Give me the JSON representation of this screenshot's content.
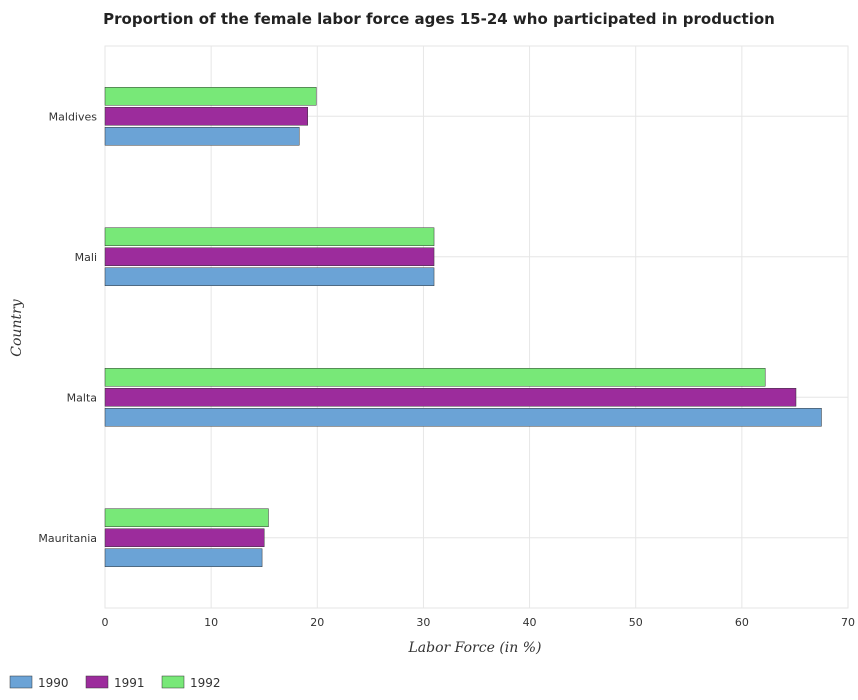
{
  "chart_data": {
    "type": "bar",
    "orientation": "horizontal",
    "title": "Proportion of the female labor force ages 15-24 who participated in production",
    "xlabel": "Labor Force (in %)",
    "ylabel": "Country",
    "xlim": [
      0,
      70
    ],
    "xticks": [
      "0",
      "10",
      "20",
      "30",
      "40",
      "50",
      "60",
      "70"
    ],
    "grid": true,
    "legend_position": "bottom-left",
    "categories": [
      "Maldives",
      "Mali",
      "Malta",
      "Mauritania"
    ],
    "series": [
      {
        "name": "1990",
        "color": "#6ba3d6",
        "values": [
          18.3,
          31.0,
          67.5,
          14.8
        ]
      },
      {
        "name": "1991",
        "color": "#9c2c9c",
        "values": [
          19.1,
          31.0,
          65.1,
          15.0
        ]
      },
      {
        "name": "1992",
        "color": "#78e878",
        "values": [
          19.9,
          31.0,
          62.2,
          15.4
        ]
      }
    ]
  }
}
